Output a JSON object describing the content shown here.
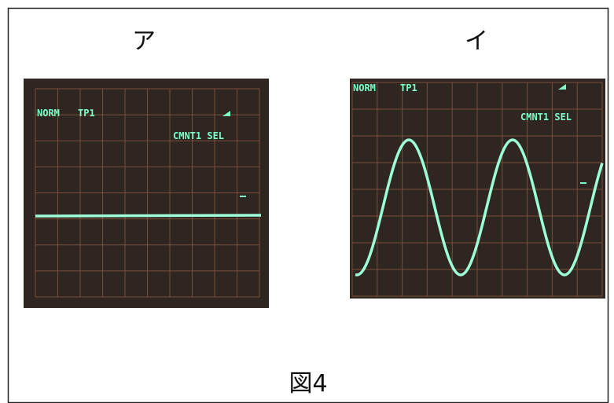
{
  "figure": {
    "caption": "図4",
    "panels": [
      {
        "label": "ア",
        "screen": {
          "mode": "NORM",
          "channel": "TP1",
          "note": "CMNT1 SEL"
        }
      },
      {
        "label": "イ",
        "screen": {
          "mode": "NORM",
          "channel": "TP1",
          "note": "CMNT1 SEL"
        }
      }
    ]
  }
}
